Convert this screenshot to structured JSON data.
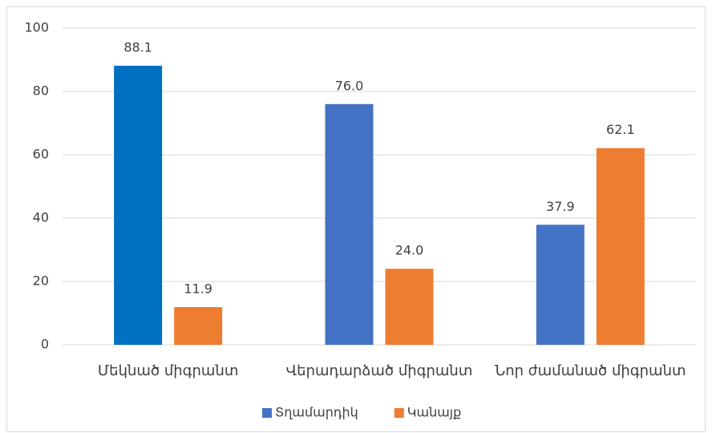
{
  "chart_data": {
    "type": "bar",
    "categories": [
      "Մեկնած միգրանտ",
      "Վերադարձած միգրանտ",
      "Նոր ժամանած միգրանտ"
    ],
    "series": [
      {
        "name": "Տղամարդիկ",
        "color": "#4472c4",
        "colors": [
          "#0070c0",
          "#4472c4",
          "#4472c4"
        ],
        "values": [
          88.1,
          76.0,
          37.9
        ],
        "value_labels": [
          "88.1",
          "76.0",
          "37.9"
        ]
      },
      {
        "name": "Կանայք",
        "color": "#ed7d31",
        "values": [
          11.9,
          24.0,
          62.1
        ],
        "value_labels": [
          "11.9",
          "24.0",
          "62.1"
        ]
      }
    ],
    "ylim": [
      0,
      100
    ],
    "yticks": [
      0,
      20,
      40,
      60,
      80,
      100
    ],
    "grid": true,
    "legend": "bottom"
  }
}
